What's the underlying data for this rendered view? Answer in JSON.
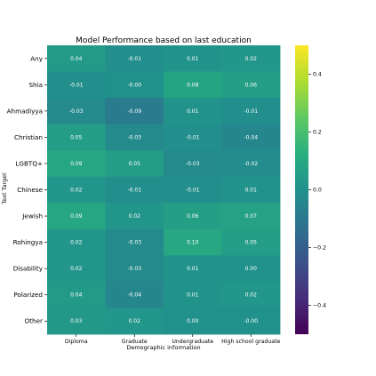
{
  "chart_data": {
    "type": "heatmap",
    "title": "Model Performance based on last education",
    "xlabel": "Demographic information",
    "ylabel": "Text Target",
    "x_categories": [
      "Diploma",
      "Graduate",
      "Undergraduate",
      "High school graduate"
    ],
    "y_categories": [
      "Any",
      "Shia",
      "Ahmadiyya",
      "Christian",
      "LGBTQ+",
      "Chinese",
      "Jewish",
      "Rohingya",
      "Disability",
      "Polarized",
      "Other"
    ],
    "values": [
      [
        0.04,
        -0.01,
        0.01,
        0.02
      ],
      [
        -0.01,
        -0.0,
        0.08,
        0.06
      ],
      [
        -0.03,
        -0.09,
        0.01,
        -0.01
      ],
      [
        0.05,
        -0.03,
        -0.01,
        -0.04
      ],
      [
        0.09,
        0.05,
        -0.03,
        -0.02
      ],
      [
        0.02,
        -0.01,
        -0.01,
        0.01
      ],
      [
        0.09,
        0.02,
        0.06,
        0.07
      ],
      [
        0.02,
        -0.03,
        0.1,
        0.05
      ],
      [
        0.02,
        -0.03,
        0.01,
        0.0
      ],
      [
        0.04,
        -0.04,
        0.01,
        0.02
      ],
      [
        0.03,
        0.02,
        0.0,
        -0.0
      ]
    ],
    "cell_labels": [
      [
        "0.04",
        "-0.01",
        "0.01",
        "0.02"
      ],
      [
        "-0.01",
        "-0.00",
        "0.08",
        "0.06"
      ],
      [
        "-0.03",
        "-0.09",
        "0.01",
        "-0.01"
      ],
      [
        "0.05",
        "-0.03",
        "-0.01",
        "-0.04"
      ],
      [
        "0.09",
        "0.05",
        "-0.03",
        "-0.02"
      ],
      [
        "0.02",
        "-0.01",
        "-0.01",
        "0.01"
      ],
      [
        "0.09",
        "0.02",
        "0.06",
        "0.07"
      ],
      [
        "0.02",
        "-0.03",
        "0.10",
        "0.05"
      ],
      [
        "0.02",
        "-0.03",
        "0.01",
        "0.00"
      ],
      [
        "0.04",
        "-0.04",
        "0.01",
        "0.02"
      ],
      [
        "0.03",
        "0.02",
        "0.00",
        "-0.00"
      ]
    ],
    "colorbar": {
      "colormap": "viridis",
      "vmin": -0.5,
      "vmax": 0.5,
      "ticks": [
        0.4,
        0.2,
        0.0,
        -0.2,
        -0.4
      ],
      "tick_labels": [
        "0.4",
        "0.2",
        "0.0",
        "−0.2",
        "−0.4"
      ]
    }
  }
}
